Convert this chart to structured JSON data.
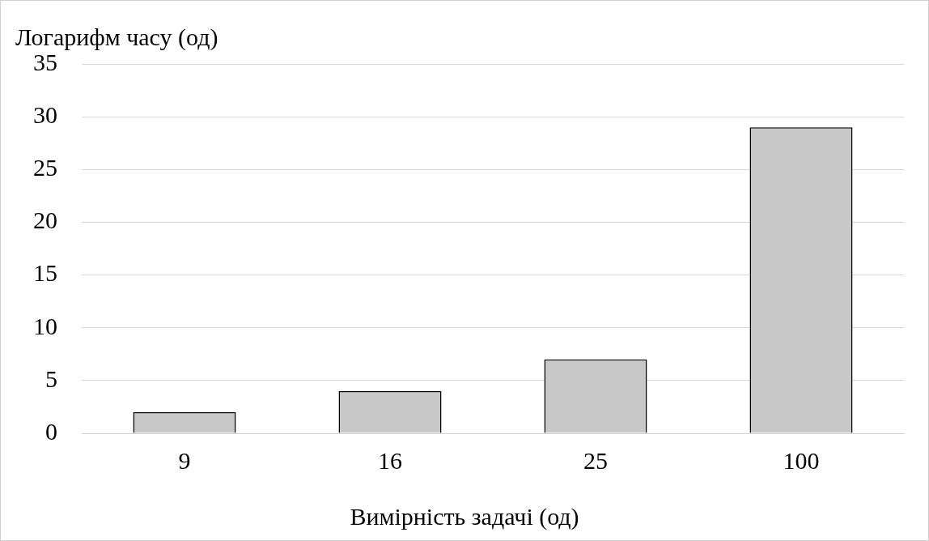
{
  "chart_data": {
    "type": "bar",
    "ylabel": "Логарифм часу (од)",
    "xlabel": "Вимірність задачі (од)",
    "categories": [
      "9",
      "16",
      "25",
      "100"
    ],
    "values": [
      2,
      4,
      7,
      29
    ],
    "color": "#c8c8c8",
    "ylim": [
      0,
      35
    ],
    "yticks": [
      0,
      5,
      10,
      15,
      20,
      25,
      30,
      35
    ],
    "grid": "y"
  }
}
